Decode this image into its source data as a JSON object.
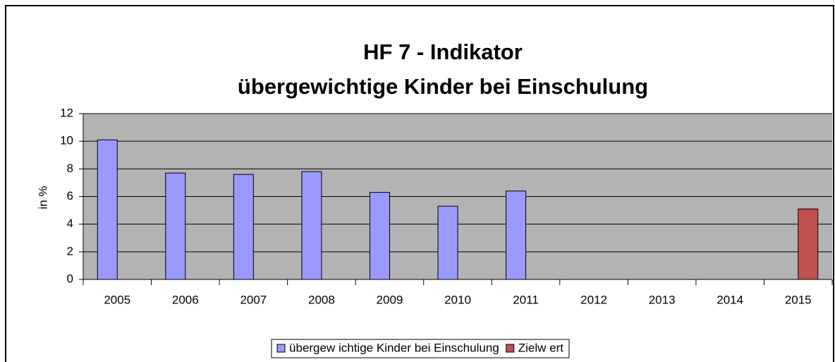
{
  "chart_data": {
    "type": "bar",
    "title": "HF 7 - Indikator",
    "subtitle": "übergewichtige Kinder bei Einschulung",
    "y_label": "in %",
    "categories": [
      "2005",
      "2006",
      "2007",
      "2008",
      "2009",
      "2010",
      "2011",
      "2012",
      "2013",
      "2014",
      "2015"
    ],
    "series": [
      {
        "name": "übergew ichtige Kinder bei Einschulung",
        "color": "#9999ff",
        "values": [
          10.1,
          7.7,
          7.6,
          7.8,
          6.3,
          5.3,
          6.4,
          null,
          null,
          null,
          null
        ]
      },
      {
        "name": "Zielw ert",
        "color": "#c0504d",
        "values": [
          null,
          null,
          null,
          null,
          null,
          null,
          null,
          null,
          null,
          null,
          5.1
        ]
      }
    ],
    "ylim": [
      0,
      12
    ],
    "yticks": [
      0,
      2,
      4,
      6,
      8,
      10,
      12
    ],
    "grid": true,
    "legend": "bottom"
  }
}
